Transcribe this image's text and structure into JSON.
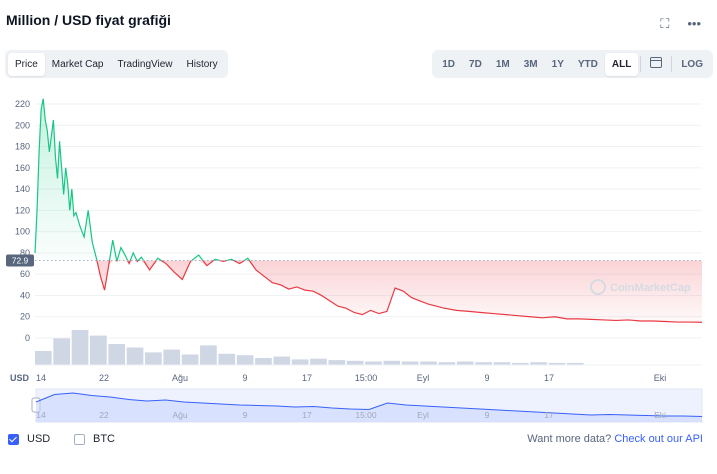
{
  "title": "Million / USD fiyat grafiği",
  "icons": {
    "fullscreen": "fullscreen-icon",
    "more": "more-icon"
  },
  "tabs": [
    {
      "label": "Price",
      "active": true
    },
    {
      "label": "Market Cap",
      "active": false
    },
    {
      "label": "TradingView",
      "active": false
    },
    {
      "label": "History",
      "active": false
    }
  ],
  "ranges": [
    {
      "label": "1D",
      "active": false
    },
    {
      "label": "7D",
      "active": false
    },
    {
      "label": "1M",
      "active": false
    },
    {
      "label": "3M",
      "active": false
    },
    {
      "label": "1Y",
      "active": false
    },
    {
      "label": "YTD",
      "active": false
    },
    {
      "label": "ALL",
      "active": true
    }
  ],
  "log_label": "LOG",
  "colors": {
    "up": "#16c784",
    "down": "#ea3943",
    "accent": "#3861fb",
    "grid": "#eff2f5"
  },
  "chart_data": {
    "type": "line",
    "ylim": [
      0,
      230
    ],
    "y_ticks": [
      0,
      20.0,
      40.0,
      60.0,
      80.0,
      100,
      120,
      140,
      160,
      180,
      200,
      220
    ],
    "x_ticks": [
      "14",
      "22",
      "Ağu",
      "9",
      "17",
      "15:00",
      "Eyl",
      "9",
      "17",
      "Eki"
    ],
    "currency_axis_label": "USD",
    "current_price_label": "72.9",
    "reference_value": 72.9,
    "watermark": "CoinMarketCap",
    "x": [
      0,
      0.5,
      1,
      1.5,
      2,
      2.5,
      3,
      3.5,
      4,
      4.5,
      5,
      5.5,
      6,
      6.5,
      7,
      7.5,
      8,
      8.5,
      9,
      9.5,
      10,
      11,
      12,
      13,
      14,
      15,
      16,
      17,
      18,
      19,
      20,
      21,
      22,
      23,
      24,
      25,
      26,
      28,
      30,
      32,
      34,
      36,
      38,
      40,
      42,
      44,
      46,
      48,
      50,
      52,
      54,
      56,
      58,
      60,
      62,
      64,
      66,
      68,
      70,
      72,
      74,
      76,
      78,
      80,
      82,
      84,
      86,
      88,
      90,
      92,
      94,
      96,
      98,
      100,
      103,
      106,
      109,
      112,
      115,
      118,
      121,
      124,
      127,
      130,
      133,
      136,
      139,
      142,
      145,
      148,
      151,
      154,
      157,
      160,
      163
    ],
    "values": [
      80,
      120,
      175,
      215,
      225,
      205,
      195,
      175,
      190,
      205,
      170,
      150,
      185,
      160,
      135,
      160,
      145,
      120,
      140,
      115,
      118,
      105,
      95,
      120,
      90,
      75,
      58,
      45,
      68,
      92,
      72,
      85,
      78,
      70,
      80,
      72,
      76,
      64,
      75,
      70,
      62,
      55,
      72,
      78,
      68,
      74,
      72,
      74,
      70,
      75,
      64,
      58,
      52,
      50,
      46,
      48,
      45,
      44,
      40,
      35,
      30,
      28,
      24,
      22,
      26,
      23,
      25,
      47,
      44,
      38,
      35,
      32,
      30,
      28,
      26,
      25,
      24,
      23,
      22,
      21,
      20,
      19,
      20,
      18,
      18,
      17.5,
      17,
      16.5,
      17,
      16,
      16,
      15.5,
      15,
      15,
      14.8
    ]
  },
  "volume_data": [
    20,
    38,
    50,
    42,
    30,
    25,
    18,
    22,
    15,
    28,
    16,
    14,
    10,
    12,
    8,
    9,
    7,
    6,
    5,
    6,
    5,
    5,
    4,
    5,
    4,
    4,
    3,
    4,
    3,
    3
  ],
  "navigator_values": [
    70,
    85,
    88,
    83,
    80,
    75,
    72,
    74,
    70,
    68,
    66,
    64,
    63,
    62,
    60,
    61,
    58,
    56,
    55,
    68,
    64,
    62,
    60,
    58,
    56,
    54,
    52,
    50,
    48,
    46,
    44,
    45,
    44,
    43,
    42,
    42,
    41
  ],
  "footer": {
    "usd_label": "USD",
    "usd_checked": true,
    "btc_label": "BTC",
    "btc_checked": false,
    "api_prefix": "Want more data? ",
    "api_link": "Check out our API"
  }
}
